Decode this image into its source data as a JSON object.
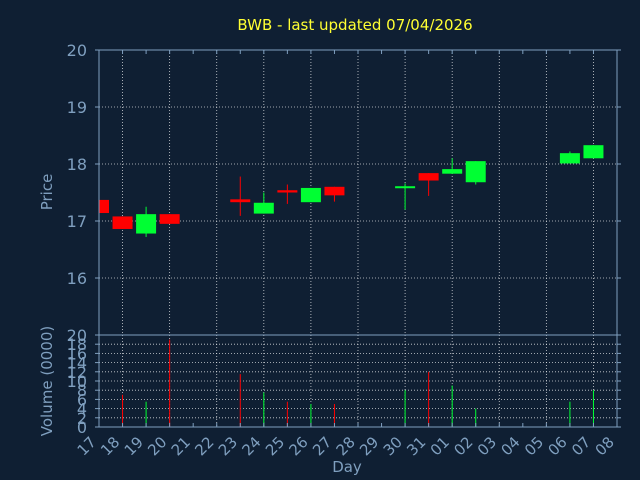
{
  "colors": {
    "background": "#0f1f33",
    "axis": "#7f9fbf",
    "grid": "#ffffff",
    "title": "#ffff33",
    "up": "#00ff33",
    "down": "#ff0000",
    "text": "#7f9fbf",
    "day_label": "#000000"
  },
  "chart_data": [
    {
      "type": "candlestick",
      "title": "BWB - last updated 07/04/2026",
      "ylabel": "Price",
      "ylim": [
        15,
        20
      ],
      "yticks": [
        16,
        17,
        18,
        19,
        20
      ],
      "grid": true,
      "x": [
        "17",
        "18",
        "19",
        "20",
        "21",
        "22",
        "23",
        "24",
        "25",
        "26",
        "27",
        "28",
        "29",
        "30",
        "31",
        "01",
        "02",
        "03",
        "04",
        "05",
        "06",
        "07",
        "08"
      ],
      "candles": [
        {
          "x": "17",
          "open": 17.37,
          "close": 17.14,
          "high": 17.37,
          "low": 17.14
        },
        {
          "x": "18",
          "open": 17.08,
          "close": 16.86,
          "high": 17.08,
          "low": 16.86
        },
        {
          "x": "19",
          "open": 16.78,
          "close": 17.12,
          "high": 17.25,
          "low": 16.72
        },
        {
          "x": "20",
          "open": 17.12,
          "close": 16.95,
          "high": 17.12,
          "low": 16.95
        },
        {
          "x": "23",
          "open": 17.38,
          "close": 17.33,
          "high": 17.78,
          "low": 17.09
        },
        {
          "x": "24",
          "open": 17.13,
          "close": 17.32,
          "high": 17.5,
          "low": 17.13
        },
        {
          "x": "25",
          "open": 17.54,
          "close": 17.5,
          "high": 17.64,
          "low": 17.3
        },
        {
          "x": "26",
          "open": 17.33,
          "close": 17.58,
          "high": 17.58,
          "low": 17.33
        },
        {
          "x": "27",
          "open": 17.6,
          "close": 17.45,
          "high": 17.6,
          "low": 17.34
        },
        {
          "x": "30",
          "open": 17.58,
          "close": 17.61,
          "high": 17.66,
          "low": 17.2
        },
        {
          "x": "31",
          "open": 17.84,
          "close": 17.71,
          "high": 17.84,
          "low": 17.44
        },
        {
          "x": "01",
          "open": 17.83,
          "close": 17.91,
          "high": 18.1,
          "low": 17.83
        },
        {
          "x": "02",
          "open": 17.68,
          "close": 18.05,
          "high": 18.05,
          "low": 17.64
        },
        {
          "x": "06",
          "open": 18.01,
          "close": 18.19,
          "high": 18.22,
          "low": 18.01
        },
        {
          "x": "07",
          "open": 18.1,
          "close": 18.33,
          "high": 18.33,
          "low": 18.1
        }
      ]
    },
    {
      "type": "bar",
      "ylabel": "Volume (0000)",
      "xlabel": "Day",
      "ylim": [
        0,
        20
      ],
      "yticks": [
        0,
        2,
        4,
        6,
        8,
        10,
        12,
        14,
        16,
        18,
        20
      ],
      "grid": true,
      "categories": [
        "18",
        "19",
        "20",
        "23",
        "24",
        "25",
        "26",
        "27",
        "30",
        "31",
        "01",
        "02",
        "06",
        "07"
      ],
      "values": [
        7,
        5.5,
        19,
        11.5,
        7.5,
        5.5,
        5,
        5,
        8,
        12,
        9,
        4,
        5.5,
        8
      ],
      "direction": [
        "down",
        "up",
        "down",
        "down",
        "up",
        "down",
        "up",
        "down",
        "up",
        "down",
        "up",
        "up",
        "up",
        "up"
      ]
    }
  ]
}
